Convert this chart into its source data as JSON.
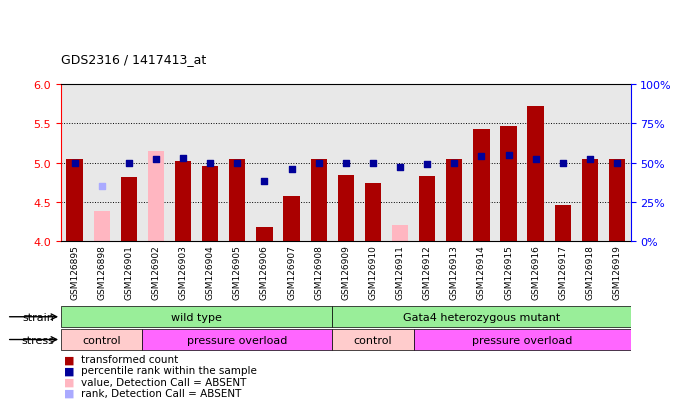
{
  "title": "GDS2316 / 1417413_at",
  "samples": [
    "GSM126895",
    "GSM126898",
    "GSM126901",
    "GSM126902",
    "GSM126903",
    "GSM126904",
    "GSM126905",
    "GSM126906",
    "GSM126907",
    "GSM126908",
    "GSM126909",
    "GSM126910",
    "GSM126911",
    "GSM126912",
    "GSM126913",
    "GSM126914",
    "GSM126915",
    "GSM126916",
    "GSM126917",
    "GSM126918",
    "GSM126919"
  ],
  "bar_values": [
    5.05,
    4.38,
    4.82,
    5.15,
    5.02,
    4.95,
    5.05,
    4.18,
    4.58,
    5.05,
    4.84,
    4.74,
    4.2,
    4.83,
    5.05,
    5.43,
    5.46,
    5.72,
    4.46,
    5.05,
    5.05
  ],
  "bar_absent": [
    false,
    true,
    false,
    true,
    false,
    false,
    false,
    false,
    false,
    false,
    false,
    false,
    true,
    false,
    false,
    false,
    false,
    false,
    false,
    false,
    false
  ],
  "rank_values": [
    50,
    35,
    50,
    52,
    53,
    50,
    50,
    38,
    46,
    50,
    50,
    50,
    47,
    49,
    50,
    54,
    55,
    52,
    50,
    52,
    50
  ],
  "rank_absent": [
    false,
    true,
    false,
    false,
    false,
    false,
    false,
    false,
    false,
    false,
    false,
    false,
    false,
    false,
    false,
    false,
    false,
    false,
    false,
    false,
    false
  ],
  "ylim_left": [
    4.0,
    6.0
  ],
  "ylim_right": [
    0,
    100
  ],
  "yticks_left": [
    4.0,
    4.5,
    5.0,
    5.5,
    6.0
  ],
  "yticks_right": [
    0,
    25,
    50,
    75,
    100
  ],
  "ytick_labels_right": [
    "0%",
    "25%",
    "50%",
    "75%",
    "100%"
  ],
  "bar_color_present": "#aa0000",
  "bar_color_absent": "#ffb6c1",
  "rank_color_present": "#000099",
  "rank_color_absent": "#aaaaff",
  "plot_bg_color": "#e8e8e8",
  "bar_width": 0.6,
  "rank_marker_size": 25,
  "strain_ranges": [
    {
      "label": "wild type",
      "start": 0,
      "end": 10,
      "color": "#99ee99"
    },
    {
      "label": "Gata4 heterozygous mutant",
      "start": 10,
      "end": 21,
      "color": "#99ee99"
    }
  ],
  "stress_ranges": [
    {
      "label": "control",
      "start": 0,
      "end": 3,
      "color": "#ffcccc"
    },
    {
      "label": "pressure overload",
      "start": 3,
      "end": 10,
      "color": "#ff66ff"
    },
    {
      "label": "control",
      "start": 10,
      "end": 13,
      "color": "#ffcccc"
    },
    {
      "label": "pressure overload",
      "start": 13,
      "end": 21,
      "color": "#ff66ff"
    }
  ],
  "legend_items": [
    {
      "color": "#aa0000",
      "label": "transformed count"
    },
    {
      "color": "#000099",
      "label": "percentile rank within the sample"
    },
    {
      "color": "#ffb6c1",
      "label": "value, Detection Call = ABSENT"
    },
    {
      "color": "#aaaaff",
      "label": "rank, Detection Call = ABSENT"
    }
  ]
}
